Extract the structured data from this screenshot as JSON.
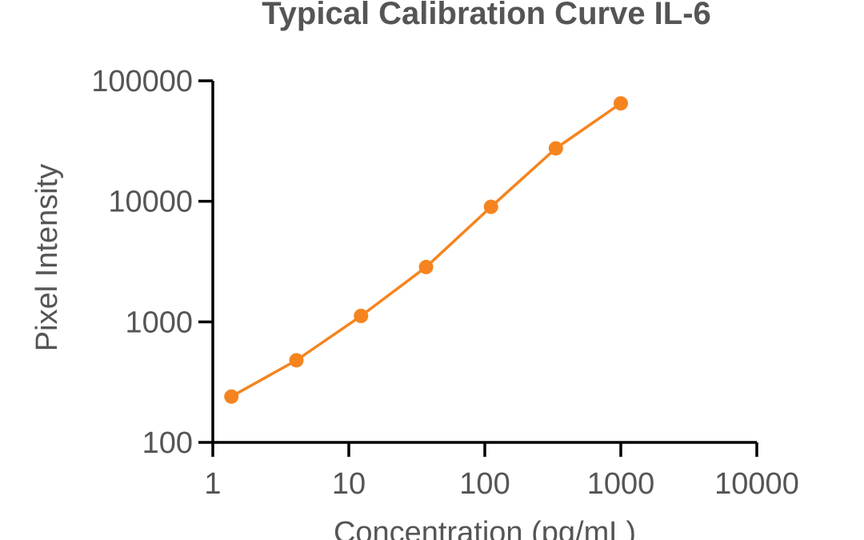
{
  "chart_data": {
    "type": "line",
    "title": "Typical Calibration Curve IL-6",
    "xlabel": "Concentration (pg/mL)",
    "ylabel": "Pixel Intensity",
    "x_scale": "log",
    "y_scale": "log",
    "xlim": [
      1,
      10000
    ],
    "ylim": [
      100,
      100000
    ],
    "x_ticks": [
      "1",
      "10",
      "100",
      "1000",
      "10000"
    ],
    "y_ticks": [
      "100",
      "1000",
      "10000",
      "100000"
    ],
    "grid": false,
    "series": [
      {
        "color": "#F5841F",
        "x": [
          1.37,
          4.12,
          12.3,
          37.0,
          111,
          333,
          1000
        ],
        "y": [
          240,
          480,
          1120,
          2850,
          9000,
          27500,
          65000
        ]
      }
    ]
  }
}
